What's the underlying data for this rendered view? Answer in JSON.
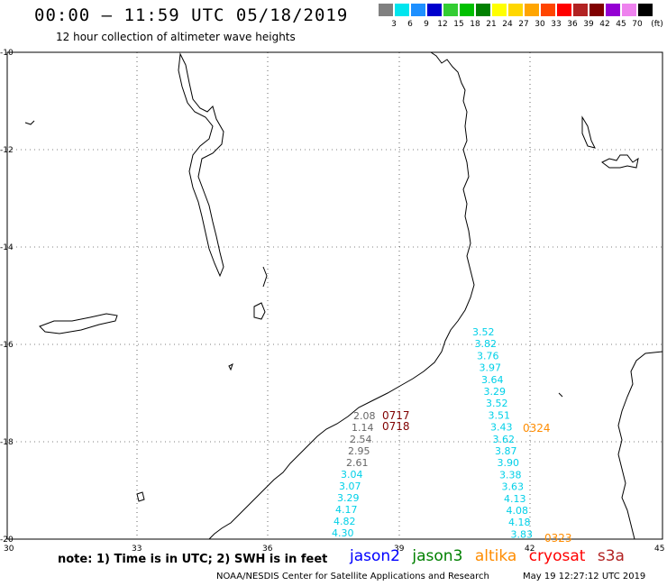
{
  "header": {
    "title": "00:00 – 11:59 UTC 05/18/2019",
    "subtitle": "12 hour collection of altimeter wave heights"
  },
  "legend": {
    "unit_label": "(ft)",
    "bins": [
      {
        "label": "3",
        "color": "#808080"
      },
      {
        "label": "6",
        "color": "#00e5ee"
      },
      {
        "label": "9",
        "color": "#1e90ff"
      },
      {
        "label": "12",
        "color": "#0000cd"
      },
      {
        "label": "15",
        "color": "#32cd32"
      },
      {
        "label": "18",
        "color": "#00c000"
      },
      {
        "label": "21",
        "color": "#008000"
      },
      {
        "label": "24",
        "color": "#ffff00"
      },
      {
        "label": "27",
        "color": "#ffd700"
      },
      {
        "label": "30",
        "color": "#ffa500"
      },
      {
        "label": "33",
        "color": "#ff4500"
      },
      {
        "label": "36",
        "color": "#ff0000"
      },
      {
        "label": "39",
        "color": "#b22222"
      },
      {
        "label": "42",
        "color": "#800000"
      },
      {
        "label": "45",
        "color": "#9400d3"
      },
      {
        "label": "70",
        "color": "#ee82ee"
      },
      {
        "label": "",
        "color": "#000000"
      }
    ]
  },
  "axes": {
    "lon_ticks": [
      "30",
      "33",
      "36",
      "39",
      "42",
      "45"
    ],
    "lat_ticks": [
      "-10",
      "-12",
      "-14",
      "-16",
      "-18",
      "-20"
    ]
  },
  "tracks": {
    "gray": {
      "color": "#666666",
      "values": [
        "2.08",
        "1.14",
        "2.54",
        "2.95",
        "2.61"
      ]
    },
    "cyan_west": {
      "color": "#00d0e8",
      "values": [
        "3.04",
        "3.07",
        "3.29",
        "4.17",
        "4.82",
        "4.30"
      ]
    },
    "cyan_east": {
      "color": "#00d0e8",
      "values": [
        "3.52",
        "3.82",
        "3.76",
        "3.97",
        "3.64",
        "3.29",
        "3.52",
        "3.51",
        "3.43",
        "3.62",
        "3.87",
        "3.90",
        "3.38",
        "3.63",
        "4.13",
        "4.08",
        "4.18",
        "3.83"
      ]
    },
    "pass_labels": [
      {
        "text": "0717",
        "color": "#800000"
      },
      {
        "text": "0718",
        "color": "#800000"
      },
      {
        "text": "0324",
        "color": "#ff8c00"
      },
      {
        "text": "0323",
        "color": "#ff8c00"
      }
    ]
  },
  "footer": {
    "note": "note:  1) Time is in UTC;  2) SWH is in feet",
    "satellites": [
      {
        "name": "jason2",
        "color": "#0000ff"
      },
      {
        "name": "jason3",
        "color": "#008000"
      },
      {
        "name": "altika",
        "color": "#ff8c00"
      },
      {
        "name": "cryosat",
        "color": "#ff0000"
      },
      {
        "name": "s3a",
        "color": "#b22222"
      }
    ],
    "credit": "NOAA/NESDIS Center for Satellite Applications and Research",
    "timestamp": "May 19 12:27:12 UTC 2019"
  }
}
